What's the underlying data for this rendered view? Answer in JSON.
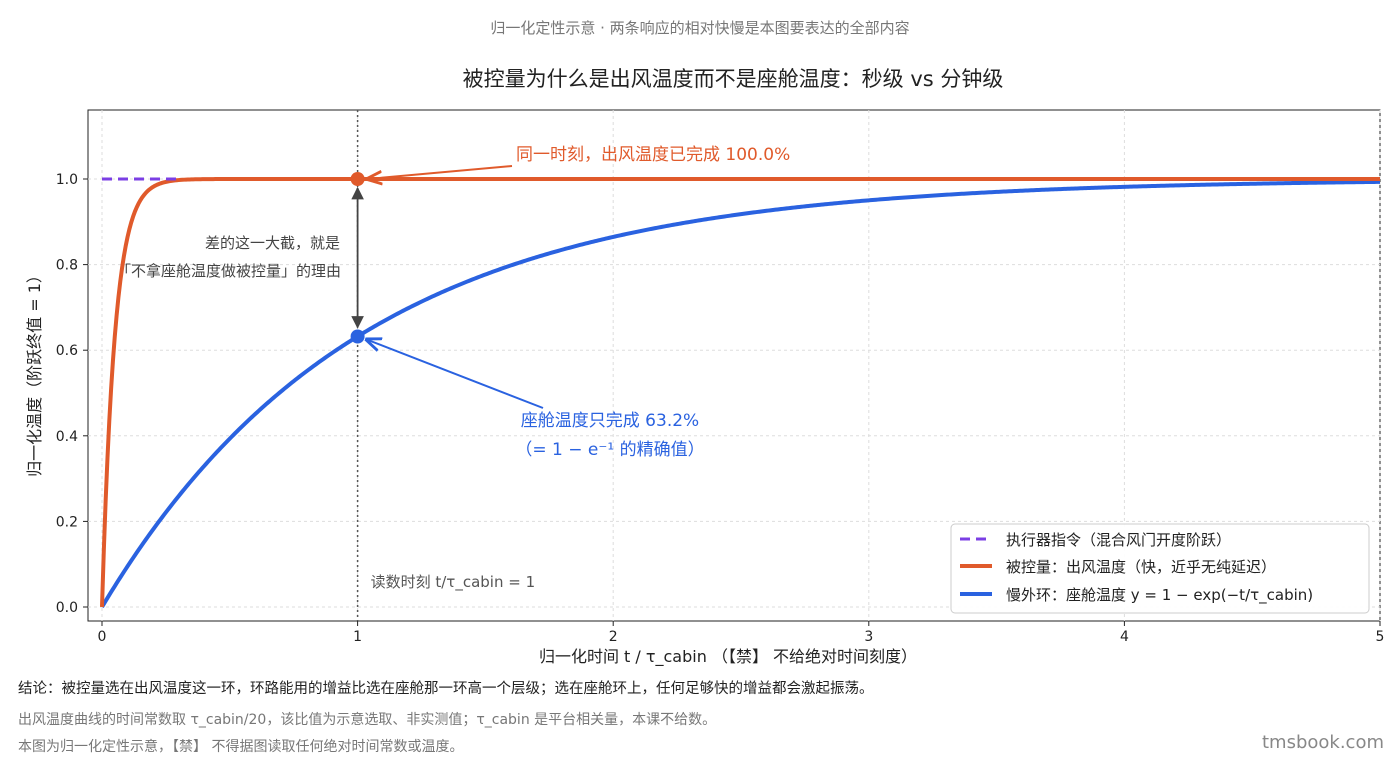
{
  "header": {
    "subtitle": "归一化定性示意 · 两条响应的相对快慢是本图要表达的全部内容",
    "title": "被控量为什么是出风温度而不是座舱温度：秒级 vs 分钟级"
  },
  "chart_data": {
    "type": "line",
    "xlabel": "归一化时间 t / τ_cabin （【禁】 不给绝对时间刻度）",
    "ylabel": "归一化温度（阶跃终值 = 1）",
    "xlim": [
      0,
      5
    ],
    "ylim": [
      -0.03,
      1.15
    ],
    "xticks": [
      0,
      1,
      2,
      3,
      4,
      5
    ],
    "yticks": [
      0.0,
      0.2,
      0.4,
      0.6,
      0.8,
      1.0
    ],
    "xtick_labels": [
      "0",
      "1",
      "2",
      "3",
      "4",
      "5"
    ],
    "ytick_labels": [
      "0.0",
      "0.2",
      "0.4",
      "0.6",
      "0.8",
      "1.0"
    ],
    "grid": true,
    "legend_position": "bottom-right",
    "series": [
      {
        "name": "执行器指令（混合风门开度阶跃）",
        "kind": "step",
        "style": "dashed",
        "color": "#7b3fe4",
        "x": [
          0,
          0.3
        ],
        "y": [
          1,
          1
        ]
      },
      {
        "name": "被控量：出风温度（快，近乎无纯延迟）",
        "kind": "exp",
        "time_constant": 0.05,
        "style": "solid",
        "color": "#e05a2b"
      },
      {
        "name": "慢外环：座舱温度 y = 1 − exp(−t/τ_cabin)",
        "kind": "exp",
        "time_constant": 1,
        "style": "solid",
        "color": "#2a62e0"
      }
    ],
    "vline": {
      "x": 1,
      "label": "读数时刻 t/τ_cabin = 1"
    },
    "markers": [
      {
        "x": 1,
        "y": 1.0,
        "color": "#e05a2b"
      },
      {
        "x": 1,
        "y": 0.632,
        "color": "#2a62e0"
      }
    ],
    "annotations": {
      "fast": "同一时刻，出风温度已完成 100.0%",
      "slow_line1": "座舱温度只完成 63.2%",
      "slow_line2": "（= 1 − e⁻¹ 的精确值）",
      "gap_line1": "差的这一大截，就是",
      "gap_line2": "「不拿座舱温度做被控量」的理由"
    }
  },
  "footer": {
    "conclusion": "结论：被控量选在出风温度这一环，环路能用的增益比选在座舱那一环高一个层级；选在座舱环上，任何足够快的增益都会激起振荡。",
    "note1": "出风温度曲线的时间常数取 τ_cabin/20，该比值为示意选取、非实测值；τ_cabin 是平台相关量，本课不给数。",
    "note2": "本图为归一化定性示意，【禁】 不得据图读取任何绝对时间常数或温度。",
    "site": "tmsbook.com"
  }
}
